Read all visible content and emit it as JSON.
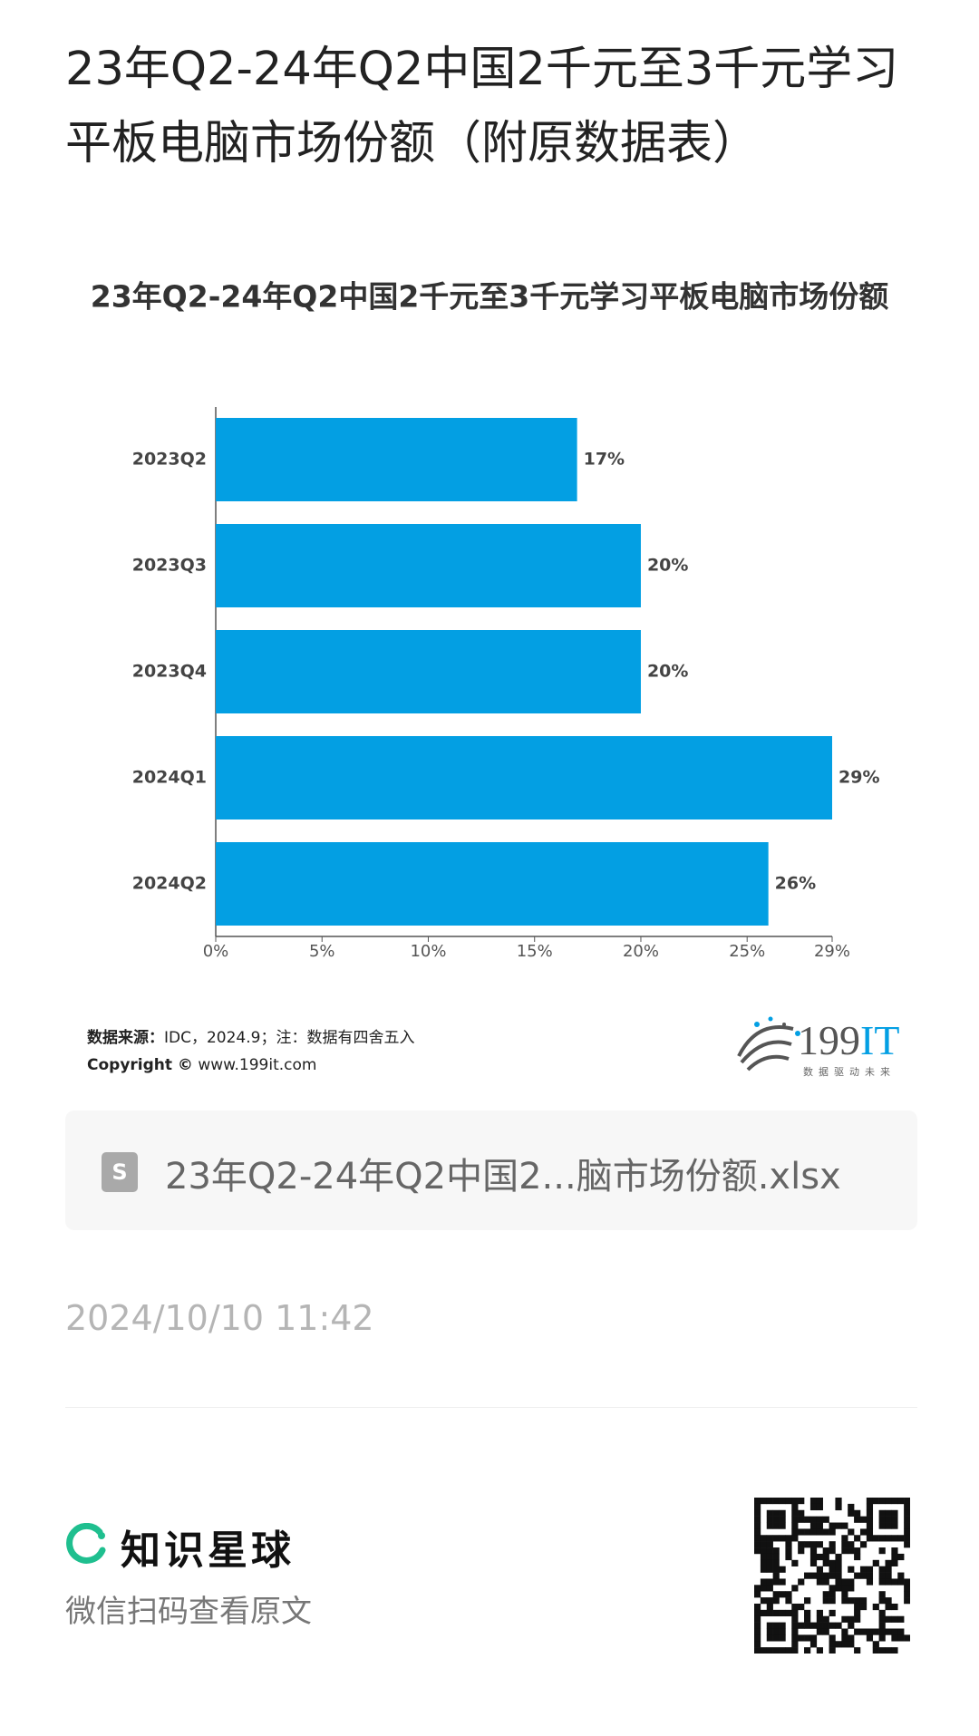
{
  "header": {
    "title": "23年Q2-24年Q2中国2千元至3千元学习平板电脑市场份额（附原数据表）"
  },
  "chart_data": {
    "type": "bar",
    "orientation": "horizontal",
    "title": "23年Q2-24年Q2中国2千元至3千元学习平板电脑市场份额",
    "categories": [
      "2023Q2",
      "2023Q3",
      "2023Q4",
      "2024Q1",
      "2024Q2"
    ],
    "values": [
      17,
      20,
      20,
      29,
      26
    ],
    "value_labels": [
      "17%",
      "20%",
      "20%",
      "29%",
      "26%"
    ],
    "color": "#039fe3",
    "xlim": [
      0,
      29
    ],
    "xticks": [
      {
        "value": 0,
        "label": "0%"
      },
      {
        "value": 5,
        "label": "5%"
      },
      {
        "value": 10,
        "label": "10%"
      },
      {
        "value": 15,
        "label": "15%"
      },
      {
        "value": 20,
        "label": "20%"
      },
      {
        "value": 25,
        "label": "25%"
      },
      {
        "value": 29,
        "label": "29%"
      }
    ],
    "grid": false
  },
  "source": {
    "label": "数据来源：",
    "text": "IDC，2024.9；注：数据有四舍五入",
    "copyright_label": "Copyright ©",
    "copyright_url": "www.199it.com"
  },
  "logo": {
    "number": "199",
    "letters": "IT",
    "slogan": "数据驱动未来"
  },
  "file": {
    "icon": "S",
    "name": "23年Q2-24年Q2中国2...脑市场份额.xlsx"
  },
  "date": "2024/10/10 11:42",
  "footer": {
    "brand": "知识星球",
    "hint": "微信扫码查看原文"
  }
}
